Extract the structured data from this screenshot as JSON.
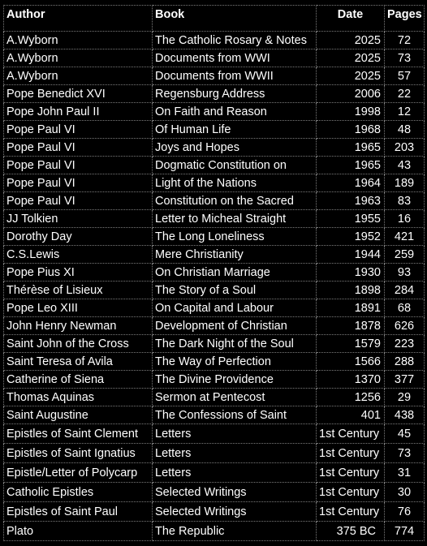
{
  "headers": {
    "author": "Author",
    "book": "Book",
    "date": "Date",
    "pages": "Pages"
  },
  "rows": [
    {
      "author": "A.Wyborn",
      "book": "The Catholic Rosary & Notes",
      "date": "2025",
      "pages": "72"
    },
    {
      "author": "A.Wyborn",
      "book": "Documents from WWI",
      "date": "2025",
      "pages": "73"
    },
    {
      "author": "A.Wyborn",
      "book": "Documents from WWII",
      "date": "2025",
      "pages": "57"
    },
    {
      "author": "Pope Benedict XVI",
      "book": "Regensburg Address",
      "date": "2006",
      "pages": "22"
    },
    {
      "author": "Pope John Paul II",
      "book": "On Faith and Reason",
      "date": "1998",
      "pages": "12"
    },
    {
      "author": "Pope Paul VI",
      "book": "Of Human Life",
      "date": "1968",
      "pages": "48"
    },
    {
      "author": "Pope Paul VI",
      "book": "Joys and Hopes",
      "date": "1965",
      "pages": "203"
    },
    {
      "author": "Pope Paul VI",
      "book": "Dogmatic Constitution on",
      "date": "1965",
      "pages": "43"
    },
    {
      "author": "Pope Paul VI",
      "book": "Light of the Nations",
      "date": "1964",
      "pages": "189"
    },
    {
      "author": "Pope Paul VI",
      "book": "Constitution on the Sacred",
      "date": "1963",
      "pages": "83"
    },
    {
      "author": "JJ Tolkien",
      "book": "Letter to Micheal Straight",
      "date": "1955",
      "pages": "16"
    },
    {
      "author": "Dorothy Day",
      "book": "The Long Loneliness",
      "date": "1952",
      "pages": "421"
    },
    {
      "author": "C.S.Lewis",
      "book": "Mere Christianity",
      "date": "1944",
      "pages": "259"
    },
    {
      "author": "Pope Pius XI",
      "book": "On Christian Marriage",
      "date": "1930",
      "pages": "93"
    },
    {
      "author": "Thérèse of Lisieux",
      "book": "The Story of a Soul",
      "date": "1898",
      "pages": "284"
    },
    {
      "author": "Pope Leo XIII",
      "book": "On Capital and Labour",
      "date": "1891",
      "pages": "68"
    },
    {
      "author": "John Henry Newman",
      "book": "Development of Christian",
      "date": "1878",
      "pages": "626"
    },
    {
      "author": "Saint John of the Cross",
      "book": "The Dark Night of the Soul",
      "date": "1579",
      "pages": "223"
    },
    {
      "author": "Saint Teresa of Avila",
      "book": "The Way of Perfection",
      "date": "1566",
      "pages": "288"
    },
    {
      "author": "Catherine of Siena",
      "book": "The Divine Providence",
      "date": "1370",
      "pages": "377"
    },
    {
      "author": "Thomas Aquinas",
      "book": "Sermon at Pentecost",
      "date": "1256",
      "pages": "29"
    },
    {
      "author": "Saint Augustine",
      "book": "The Confessions of Saint",
      "date": "401",
      "pages": "438"
    },
    {
      "author": "Epistles of Saint Clement",
      "book": "Letters",
      "date": "1st Century",
      "pages": "45"
    },
    {
      "author": "Epistles of Saint Ignatius",
      "book": "Letters",
      "date": "1st Century",
      "pages": "73"
    },
    {
      "author": "Epistle/Letter of Polycarp",
      "book": "Letters",
      "date": "1st Century",
      "pages": "31"
    },
    {
      "author": "Catholic Epistles",
      "book": "Selected Writings",
      "date": "1st Century",
      "pages": "30"
    },
    {
      "author": "Epistles of Saint Paul",
      "book": "Selected Writings",
      "date": "1st Century",
      "pages": "76"
    },
    {
      "author": "Plato",
      "book": "The Republic",
      "date": "375 BC",
      "pages": "774"
    }
  ]
}
